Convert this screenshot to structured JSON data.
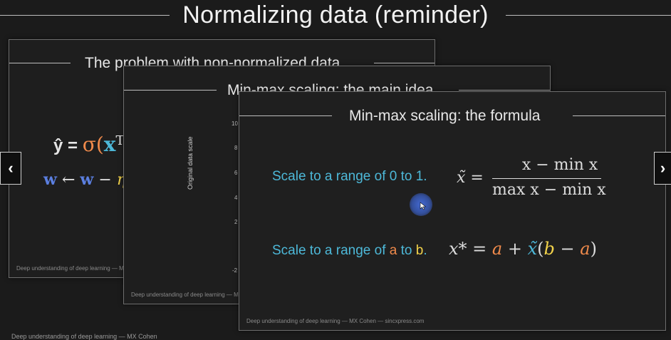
{
  "page": {
    "title": "Normalizing data (reminder)"
  },
  "slide1": {
    "title": "The problem with non-normalized data",
    "eq1_lhs": "ŷ = ",
    "eq1_sigma": "σ(",
    "eq1_x": "x",
    "eq1_sup": "T",
    "eq2_w": "w",
    "eq2_arrow": " ← ",
    "eq2_w2": "w",
    "eq2_minus": " − ",
    "eq2_eta": "η",
    "footer": "Deep understanding of deep learning — MX"
  },
  "slide2": {
    "title": "Min-max scaling: the main idea",
    "y_axis_label": "Original data scale",
    "ticks": [
      "10",
      "8",
      "6",
      "4",
      "2",
      "-2"
    ],
    "footer": "Deep understanding of deep learning — MX"
  },
  "slide3": {
    "title": "Min-max scaling: the formula",
    "line1": "Scale to a range of 0 to 1.",
    "line2_prefix": "Scale to a range of ",
    "line2_a": "a",
    "line2_mid": " to ",
    "line2_b": "b",
    "line2_end": ".",
    "f1_lhs": "x̃ =",
    "f1_num": "x − min x",
    "f1_den": "max x − min x",
    "f2_lhs": "x* = ",
    "f2_a": "a",
    "f2_plus": " + ",
    "f2_xt": "x̃",
    "f2_open": "(",
    "f2_b": "b",
    "f2_minus": " − ",
    "f2_a2": "a",
    "f2_close": ")",
    "footer": "Deep understanding of deep learning — MX Cohen — sincxpress.com"
  },
  "bottom_footer": "Deep understanding of deep learning — MX Cohen",
  "nav": {
    "prev": "‹",
    "next": "›"
  },
  "colors": {
    "cyan": "#4db8d8",
    "orange": "#f08a4b",
    "yellow": "#f2d24a",
    "blue": "#5b7fe0"
  }
}
